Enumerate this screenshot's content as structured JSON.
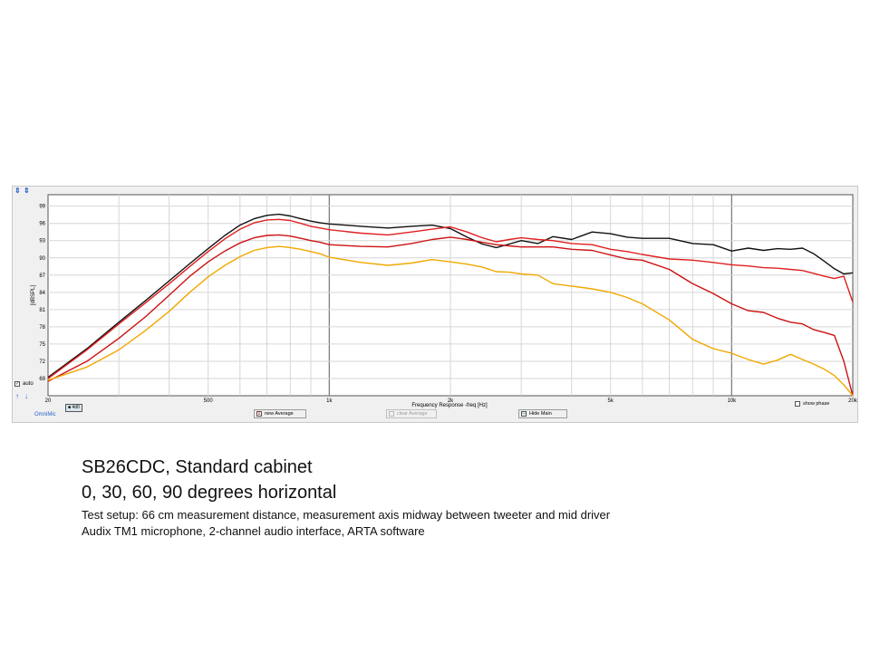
{
  "app": {
    "brand": "OmniMic",
    "buttons": {
      "new_average": "new Average",
      "clear_average": "clear Average",
      "hide_main": "Hide Main"
    },
    "auto_label": "auto",
    "show_phase_label": "show phase",
    "legend_box_label": "■ 4d0"
  },
  "caption": {
    "title": "SB26CDC, Standard cabinet",
    "subtitle": "0, 30, 60, 90 degrees horizontal",
    "line1": "Test setup:  66 cm measurement distance, measurement  axis midway between tweeter and mid driver",
    "line2": "Audix TM1 microphone,  2-channel audio interface, ARTA software"
  },
  "chart_data": {
    "type": "line",
    "title": "",
    "xlabel": "Frequency Response -freq [Hz]",
    "ylabel": "[dBSPL]",
    "x_scale": "log",
    "xlim": [
      200,
      20000
    ],
    "ylim": [
      66,
      101
    ],
    "x_ticks": [
      {
        "value": 500,
        "label": "500"
      },
      {
        "value": 1000,
        "label": "1k"
      },
      {
        "value": 2000,
        "label": "2k"
      },
      {
        "value": 5000,
        "label": "5k"
      },
      {
        "value": 10000,
        "label": "10k"
      }
    ],
    "x_edge_labels": [
      "20",
      "20k"
    ],
    "y_ticks": [
      69,
      72,
      75,
      78,
      81,
      84,
      87,
      90,
      93,
      96,
      99
    ],
    "grid": true,
    "series": [
      {
        "color": "#111111",
        "x": [
          200,
          250,
          300,
          350,
          400,
          450,
          500,
          550,
          600,
          650,
          700,
          750,
          800,
          850,
          900,
          950,
          1000,
          1200,
          1400,
          1600,
          1800,
          2000,
          2200,
          2400,
          2600,
          2800,
          3000,
          3300,
          3600,
          4000,
          4500,
          5000,
          5500,
          6000,
          7000,
          8000,
          9000,
          10000,
          11000,
          12000,
          13000,
          14000,
          15000,
          16000,
          17000,
          18000,
          19000,
          20000
        ],
        "y": [
          69.2,
          74.2,
          78.8,
          82.6,
          86,
          89,
          91.6,
          93.9,
          95.7,
          96.8,
          97.4,
          97.6,
          97.3,
          96.8,
          96.4,
          96.1,
          95.9,
          95.5,
          95.2,
          95.5,
          95.7,
          95.1,
          93.6,
          92.4,
          91.8,
          92.4,
          93,
          92.5,
          93.7,
          93.2,
          94.5,
          94.2,
          93.6,
          93.4,
          93.4,
          92.5,
          92.3,
          91.2,
          91.7,
          91.3,
          91.6,
          91.5,
          91.7,
          90.7,
          89.4,
          88.1,
          87.2,
          87.4
        ]
      },
      {
        "color": "#e02020",
        "x": [
          200,
          250,
          300,
          350,
          400,
          450,
          500,
          550,
          600,
          650,
          700,
          750,
          800,
          850,
          900,
          950,
          1000,
          1200,
          1400,
          1600,
          1800,
          2000,
          2200,
          2400,
          2600,
          2800,
          3000,
          3300,
          3600,
          4000,
          4500,
          5000,
          5500,
          6000,
          7000,
          8000,
          9000,
          10000,
          11000,
          12000,
          13000,
          14000,
          15000,
          16000,
          17000,
          18000,
          19000,
          20000
        ],
        "y": [
          69,
          74,
          78.5,
          82.2,
          85.5,
          88.5,
          91.1,
          93.3,
          95,
          96.1,
          96.6,
          96.7,
          96.5,
          96,
          95.5,
          95.2,
          94.9,
          94.3,
          94,
          94.5,
          95,
          95.4,
          94.5,
          93.5,
          92.8,
          93.2,
          93.5,
          93.2,
          93,
          92.5,
          92.3,
          91.5,
          91.1,
          90.6,
          89.8,
          89.6,
          89.2,
          88.8,
          88.6,
          88.3,
          88.2,
          88,
          87.8,
          87.3,
          86.8,
          86.4,
          86.8,
          82.3
        ]
      },
      {
        "color": "#cc1111",
        "x": [
          200,
          250,
          300,
          350,
          400,
          450,
          500,
          550,
          600,
          650,
          700,
          750,
          800,
          850,
          900,
          950,
          1000,
          1200,
          1400,
          1600,
          1800,
          2000,
          2200,
          2400,
          2600,
          2800,
          3000,
          3300,
          3600,
          4000,
          4500,
          5000,
          5500,
          6000,
          7000,
          8000,
          9000,
          10000,
          11000,
          12000,
          13000,
          14000,
          15000,
          16000,
          17000,
          18000,
          19000,
          20000
        ],
        "y": [
          68.5,
          72,
          76,
          79.8,
          83.5,
          86.8,
          89.3,
          91.2,
          92.6,
          93.5,
          93.9,
          94,
          93.8,
          93.4,
          93,
          92.7,
          92.3,
          92,
          91.9,
          92.5,
          93.2,
          93.6,
          93.2,
          92.7,
          92.3,
          92.1,
          91.9,
          91.9,
          91.9,
          91.5,
          91.3,
          90.5,
          89.8,
          89.6,
          88,
          85.5,
          83.8,
          82,
          80.8,
          80.5,
          79.5,
          78.8,
          78.5,
          77.5,
          77,
          76.5,
          72,
          65
        ]
      },
      {
        "color": "#f0a800",
        "x": [
          200,
          250,
          300,
          350,
          400,
          450,
          500,
          550,
          600,
          650,
          700,
          750,
          800,
          850,
          900,
          950,
          1000,
          1200,
          1400,
          1600,
          1800,
          2000,
          2200,
          2400,
          2600,
          2800,
          3000,
          3300,
          3600,
          4000,
          4500,
          5000,
          5500,
          6000,
          7000,
          8000,
          9000,
          10000,
          11000,
          12000,
          13000,
          14000,
          15000,
          16000,
          17000,
          18000,
          19000,
          20000
        ],
        "y": [
          68.7,
          71,
          74,
          77.4,
          80.7,
          84,
          86.7,
          88.7,
          90.2,
          91.3,
          91.8,
          92,
          91.8,
          91.5,
          91.1,
          90.7,
          90.1,
          89.2,
          88.7,
          89.1,
          89.7,
          89.3,
          88.9,
          88.4,
          87.6,
          87.5,
          87.2,
          87,
          85.5,
          85.1,
          84.6,
          84,
          83.1,
          82,
          79.2,
          75.8,
          74.2,
          73.4,
          72.3,
          71.5,
          72.2,
          73.2,
          72.3,
          71.5,
          70.6,
          69.5,
          67.9,
          65.5
        ]
      }
    ]
  }
}
